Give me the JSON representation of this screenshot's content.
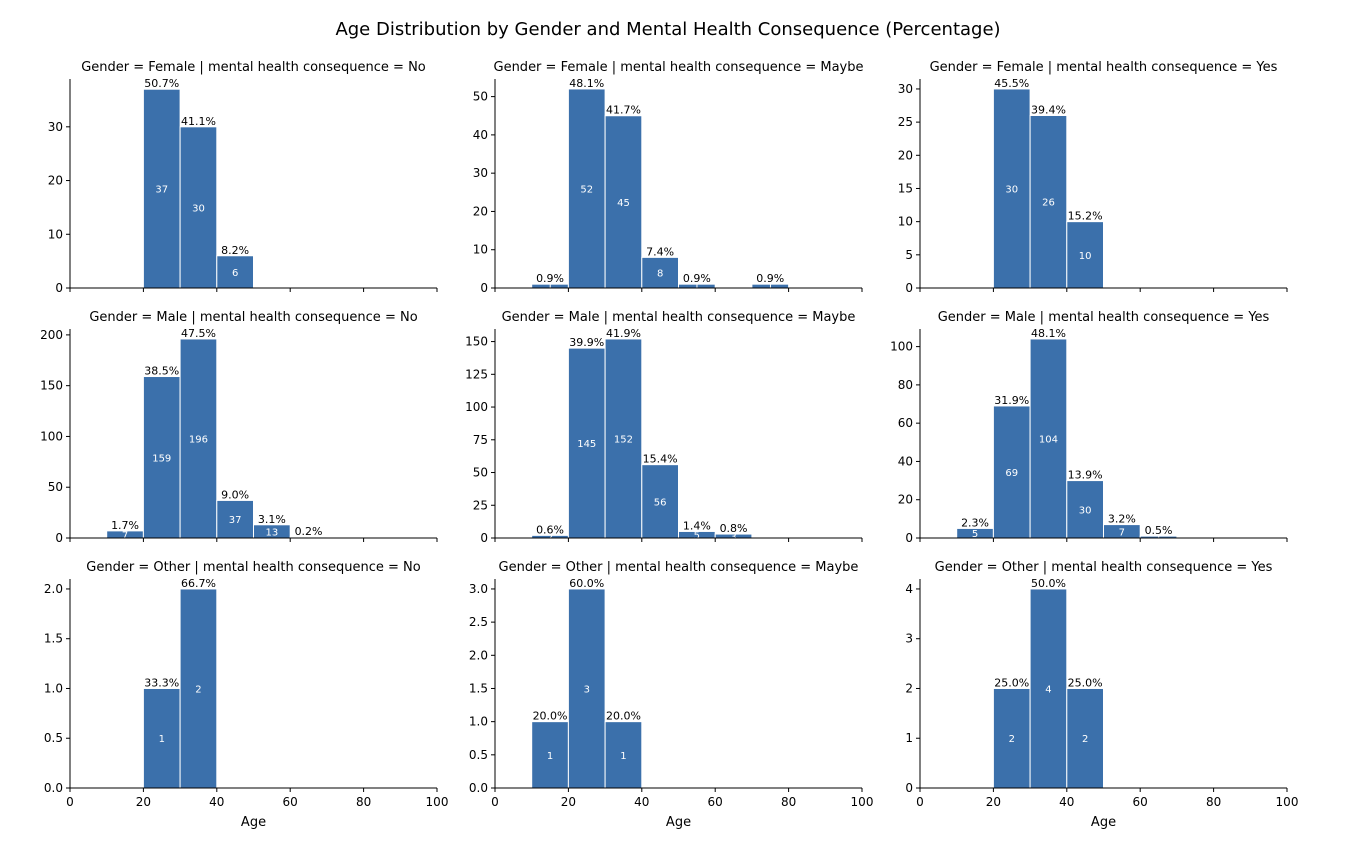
{
  "title": "Age Distribution by Gender and Mental Health Consequence (Percentage)",
  "colors": {
    "bar": "#3b70ab",
    "count_text": "#ffffff",
    "axis": "#000000"
  },
  "chart_data": [
    {
      "type": "bar",
      "title": "Gender = Female | mental health consequence = No",
      "xlabel": "",
      "bin_width": 10,
      "xlim": [
        0,
        100
      ],
      "ylim": [
        0,
        38.9
      ],
      "yticks": [
        0,
        10,
        20,
        30
      ],
      "ytick_labels": [
        "0",
        "10",
        "20",
        "30"
      ],
      "xticks": [
        0,
        20,
        40,
        60,
        80,
        100
      ],
      "xtick_labels": [],
      "bins": [
        [
          20,
          37,
          "50.7%"
        ],
        [
          30,
          30,
          "41.1%"
        ],
        [
          40,
          6,
          "8.2%"
        ]
      ]
    },
    {
      "type": "bar",
      "title": "Gender = Female | mental health consequence = Maybe",
      "xlabel": "",
      "bin_width": 10,
      "xlim": [
        0,
        100
      ],
      "ylim": [
        0,
        54.6
      ],
      "yticks": [
        0,
        10,
        20,
        30,
        40,
        50
      ],
      "ytick_labels": [
        "0",
        "10",
        "20",
        "30",
        "40",
        "50"
      ],
      "xticks": [
        0,
        20,
        40,
        60,
        80,
        100
      ],
      "xtick_labels": [],
      "bins": [
        [
          10,
          1,
          "0.9%"
        ],
        [
          20,
          52,
          "48.1%"
        ],
        [
          30,
          45,
          "41.7%"
        ],
        [
          40,
          8,
          "7.4%"
        ],
        [
          50,
          1,
          "0.9%"
        ],
        [
          70,
          1,
          "0.9%"
        ]
      ]
    },
    {
      "type": "bar",
      "title": "Gender = Female | mental health consequence = Yes",
      "xlabel": "",
      "bin_width": 10,
      "xlim": [
        0,
        100
      ],
      "ylim": [
        0,
        31.5
      ],
      "yticks": [
        0,
        5,
        10,
        15,
        20,
        25,
        30
      ],
      "ytick_labels": [
        "0",
        "5",
        "10",
        "15",
        "20",
        "25",
        "30"
      ],
      "xticks": [
        0,
        20,
        40,
        60,
        80,
        100
      ],
      "xtick_labels": [],
      "bins": [
        [
          20,
          30,
          "45.5%"
        ],
        [
          30,
          26,
          "39.4%"
        ],
        [
          40,
          10,
          "15.2%"
        ]
      ]
    },
    {
      "type": "bar",
      "title": "Gender = Male | mental health consequence = No",
      "xlabel": "",
      "bin_width": 10,
      "xlim": [
        0,
        100
      ],
      "ylim": [
        0,
        205.8
      ],
      "yticks": [
        0,
        50,
        100,
        150,
        200
      ],
      "ytick_labels": [
        "0",
        "50",
        "100",
        "150",
        "200"
      ],
      "xticks": [
        0,
        20,
        40,
        60,
        80,
        100
      ],
      "xtick_labels": [],
      "bins": [
        [
          10,
          7,
          "1.7%"
        ],
        [
          20,
          159,
          "38.5%"
        ],
        [
          30,
          196,
          "47.5%"
        ],
        [
          40,
          37,
          "9.0%"
        ],
        [
          50,
          13,
          "3.1%"
        ],
        [
          60,
          1,
          "0.2%"
        ]
      ]
    },
    {
      "type": "bar",
      "title": "Gender = Male | mental health consequence = Maybe",
      "xlabel": "",
      "bin_width": 10,
      "xlim": [
        0,
        100
      ],
      "ylim": [
        0,
        159.6
      ],
      "yticks": [
        0,
        25,
        50,
        75,
        100,
        125,
        150
      ],
      "ytick_labels": [
        "0",
        "25",
        "50",
        "75",
        "100",
        "125",
        "150"
      ],
      "xticks": [
        0,
        20,
        40,
        60,
        80,
        100
      ],
      "xtick_labels": [],
      "bins": [
        [
          10,
          2,
          "0.6%"
        ],
        [
          20,
          145,
          "39.9%"
        ],
        [
          30,
          152,
          "41.9%"
        ],
        [
          40,
          56,
          "15.4%"
        ],
        [
          50,
          5,
          "1.4%"
        ],
        [
          60,
          3,
          "0.8%"
        ]
      ]
    },
    {
      "type": "bar",
      "title": "Gender = Male | mental health consequence = Yes",
      "xlabel": "",
      "bin_width": 10,
      "xlim": [
        0,
        100
      ],
      "ylim": [
        0,
        109.2
      ],
      "yticks": [
        0,
        20,
        40,
        60,
        80,
        100
      ],
      "ytick_labels": [
        "0",
        "20",
        "40",
        "60",
        "80",
        "100"
      ],
      "xticks": [
        0,
        20,
        40,
        60,
        80,
        100
      ],
      "xtick_labels": [],
      "bins": [
        [
          10,
          5,
          "2.3%"
        ],
        [
          20,
          69,
          "31.9%"
        ],
        [
          30,
          104,
          "48.1%"
        ],
        [
          40,
          30,
          "13.9%"
        ],
        [
          50,
          7,
          "3.2%"
        ],
        [
          60,
          1,
          "0.5%"
        ]
      ]
    },
    {
      "type": "bar",
      "title": "Gender = Other | mental health consequence = No",
      "xlabel": "Age",
      "bin_width": 10,
      "xlim": [
        0,
        100
      ],
      "ylim": [
        0,
        2.1
      ],
      "yticks": [
        0,
        0.5,
        1,
        1.5,
        2
      ],
      "ytick_labels": [
        "0.0",
        "0.5",
        "1.0",
        "1.5",
        "2.0"
      ],
      "xticks": [
        0,
        20,
        40,
        60,
        80,
        100
      ],
      "xtick_labels": [
        "0",
        "20",
        "40",
        "60",
        "80",
        "100"
      ],
      "bins": [
        [
          20,
          1,
          "33.3%"
        ],
        [
          30,
          2,
          "66.7%"
        ]
      ]
    },
    {
      "type": "bar",
      "title": "Gender = Other | mental health consequence = Maybe",
      "xlabel": "Age",
      "bin_width": 10,
      "xlim": [
        0,
        100
      ],
      "ylim": [
        0,
        3.15
      ],
      "yticks": [
        0,
        0.5,
        1,
        1.5,
        2,
        2.5,
        3
      ],
      "ytick_labels": [
        "0.0",
        "0.5",
        "1.0",
        "1.5",
        "2.0",
        "2.5",
        "3.0"
      ],
      "xticks": [
        0,
        20,
        40,
        60,
        80,
        100
      ],
      "xtick_labels": [
        "0",
        "20",
        "40",
        "60",
        "80",
        "100"
      ],
      "bins": [
        [
          10,
          1,
          "20.0%"
        ],
        [
          20,
          3,
          "60.0%"
        ],
        [
          30,
          1,
          "20.0%"
        ]
      ]
    },
    {
      "type": "bar",
      "title": "Gender = Other | mental health consequence = Yes",
      "xlabel": "Age",
      "bin_width": 10,
      "xlim": [
        0,
        100
      ],
      "ylim": [
        0,
        4.2
      ],
      "yticks": [
        0,
        1,
        2,
        3,
        4
      ],
      "ytick_labels": [
        "0",
        "1",
        "2",
        "3",
        "4"
      ],
      "xticks": [
        0,
        20,
        40,
        60,
        80,
        100
      ],
      "xtick_labels": [
        "0",
        "20",
        "40",
        "60",
        "80",
        "100"
      ],
      "bins": [
        [
          20,
          2,
          "25.0%"
        ],
        [
          30,
          4,
          "50.0%"
        ],
        [
          40,
          2,
          "25.0%"
        ]
      ]
    }
  ]
}
